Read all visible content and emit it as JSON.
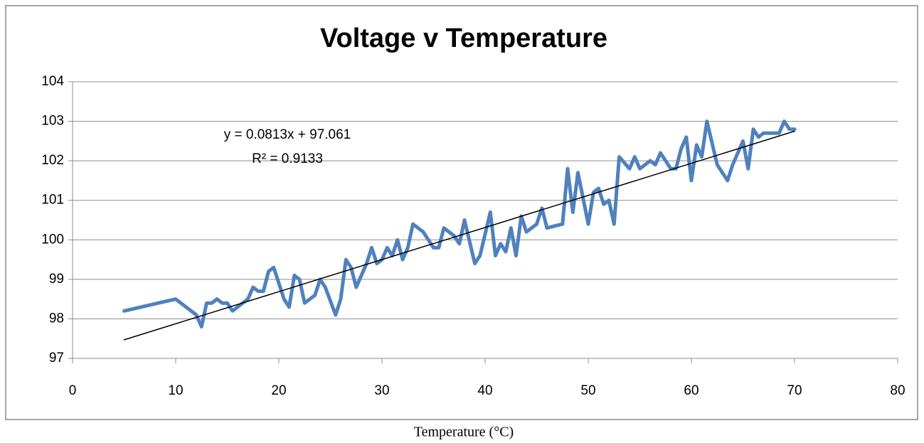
{
  "chart_data": {
    "type": "line",
    "title": "Voltage v Temperature",
    "x_label": "Temperature (°C)",
    "annotations": [
      "y = 0.0813x + 97.061",
      "R² = 0.9133"
    ],
    "xlim": [
      0,
      80
    ],
    "xticks": [
      0,
      10,
      20,
      30,
      40,
      50,
      60,
      70,
      80
    ],
    "ylim": [
      97,
      104
    ],
    "yticks": [
      97,
      98,
      99,
      100,
      101,
      102,
      103,
      104
    ],
    "grid": true,
    "x": [
      5,
      10,
      12,
      12.5,
      13,
      13.5,
      14,
      14.5,
      15,
      15.5,
      16.5,
      17,
      17.5,
      18,
      18.5,
      19,
      19.5,
      20.5,
      21,
      21.5,
      22,
      22.5,
      23.5,
      24,
      24.5,
      25.5,
      26,
      26.5,
      27,
      27.5,
      28.5,
      29,
      29.5,
      30,
      30.5,
      31,
      31.5,
      32,
      32.5,
      33,
      34,
      35,
      35.5,
      36,
      37,
      37.5,
      38,
      39,
      39.5,
      40.5,
      41,
      41.5,
      42,
      42.5,
      43,
      43.5,
      44,
      45,
      45.5,
      46,
      47.5,
      48,
      48.5,
      49,
      50,
      50.5,
      51,
      51.5,
      52,
      52.5,
      53,
      54,
      54.5,
      55,
      56,
      56.5,
      57,
      58,
      58.5,
      59,
      59.5,
      60,
      60.5,
      61,
      61.5,
      62.5,
      63.5,
      64,
      65,
      65.5,
      66,
      66.5,
      67,
      68.5,
      69,
      69.5,
      70
    ],
    "series": [
      {
        "name": "Voltage",
        "color": "#4f81bd",
        "values": [
          98.2,
          98.5,
          98.1,
          97.8,
          98.4,
          98.4,
          98.5,
          98.4,
          98.4,
          98.2,
          98.4,
          98.5,
          98.8,
          98.7,
          98.7,
          99.2,
          99.3,
          98.5,
          98.3,
          99.1,
          99.0,
          98.4,
          98.6,
          99.0,
          98.8,
          98.1,
          98.5,
          99.5,
          99.3,
          98.8,
          99.4,
          99.8,
          99.4,
          99.5,
          99.8,
          99.6,
          100.0,
          99.5,
          99.8,
          100.4,
          100.2,
          99.8,
          99.8,
          100.3,
          100.1,
          99.9,
          100.5,
          99.4,
          99.6,
          100.7,
          99.6,
          99.9,
          99.7,
          100.3,
          99.6,
          100.6,
          100.2,
          100.4,
          100.8,
          100.3,
          100.4,
          101.8,
          100.7,
          101.7,
          100.4,
          101.2,
          101.3,
          100.9,
          101.0,
          100.4,
          102.1,
          101.8,
          102.1,
          101.8,
          102.0,
          101.9,
          102.2,
          101.8,
          101.8,
          102.3,
          102.6,
          101.5,
          102.4,
          102.1,
          103.0,
          101.9,
          101.5,
          101.9,
          102.5,
          101.8,
          102.8,
          102.6,
          102.7,
          102.7,
          103.0,
          102.8,
          102.8
        ]
      }
    ],
    "trendline": {
      "color": "#000000",
      "x": [
        5,
        70
      ],
      "values": [
        97.47,
        102.75
      ]
    }
  }
}
